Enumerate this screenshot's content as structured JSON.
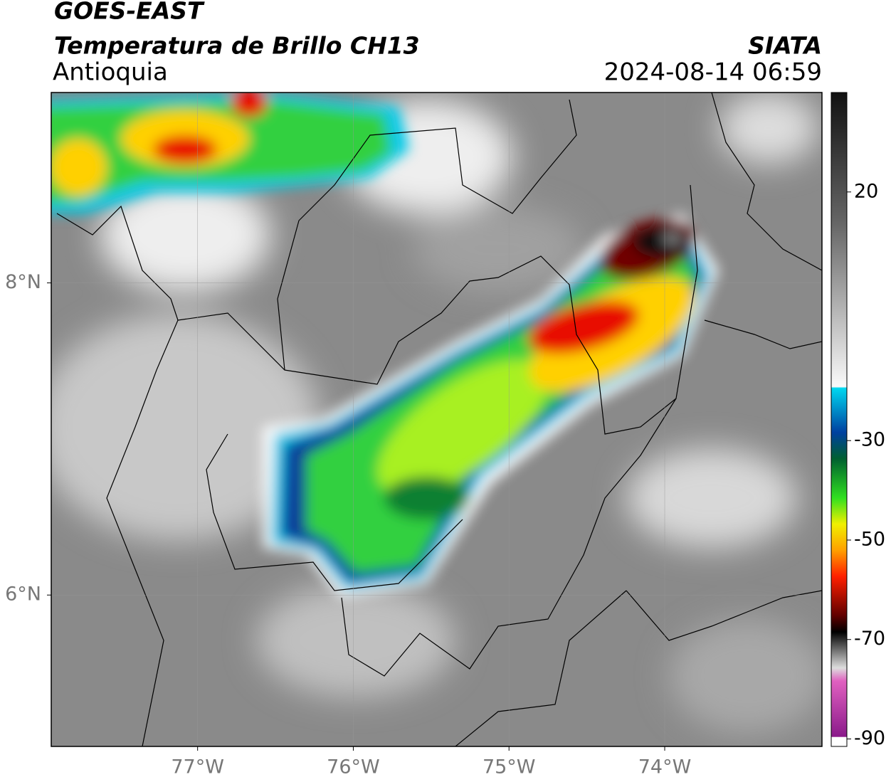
{
  "header": {
    "title": "GOES-EAST",
    "subtitle": "Temperatura de Brillo CH13",
    "region": "Antioquia",
    "source": "SIATA",
    "datetime": "2024-08-14 06:59"
  },
  "map": {
    "xlim": [
      -77.94,
      -72.99
    ],
    "ylim": [
      5.03,
      9.22
    ],
    "xticks": [
      {
        "value": -77,
        "label": "77°W"
      },
      {
        "value": -76,
        "label": "76°W"
      },
      {
        "value": -75,
        "label": "75°W"
      },
      {
        "value": -74,
        "label": "74°W"
      }
    ],
    "yticks": [
      {
        "value": 8,
        "label": "8°N"
      },
      {
        "value": 6,
        "label": "6°N"
      }
    ],
    "grid": true
  },
  "colorbar": {
    "lim": [
      -91.5,
      40
    ],
    "ticks": [
      20,
      -30,
      -50,
      -70,
      -90
    ]
  }
}
